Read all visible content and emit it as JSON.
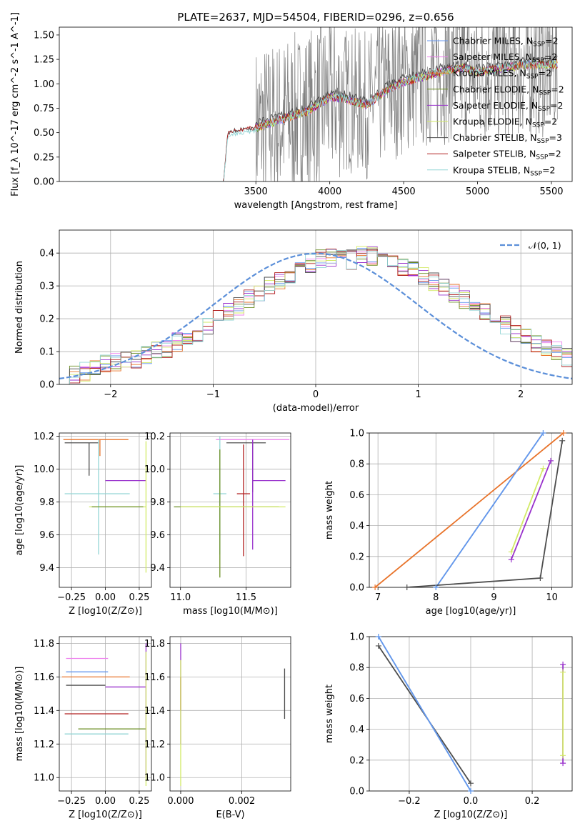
{
  "colors": {
    "Chabrier MILES": "#6495ed",
    "Salpeter MILES": "#ee82ee",
    "Kroupa MILES": "#e8732a",
    "Chabrier ELODIE": "#6b8e23",
    "Salpeter ELODIE": "#9932cc",
    "Kroupa ELODIE": "#d2ea66",
    "Chabrier STELIB": "#4d4d4d",
    "Salpeter STELIB": "#b22222",
    "Kroupa STELIB": "#93d5d5",
    "data": "#808080",
    "gauss": "#5b8fd9"
  },
  "chart_data": [
    {
      "id": "spectrum",
      "type": "line",
      "title": "PLATE=2637, MJD=54504, FIBERID=0296, z=0.656",
      "xlabel": "wavelength [Angstrom, rest frame]",
      "ylabel": "Flux [f_λ 10^-17 erg cm^-2 s^-1 A^-1]",
      "xlim": [
        2170,
        5640
      ],
      "ylim": [
        0,
        1.58
      ],
      "xticks": [
        "3500",
        "4000",
        "4500",
        "5000",
        "5500"
      ],
      "yticks": [
        "0.00",
        "0.25",
        "0.50",
        "0.75",
        "1.00",
        "1.25",
        "1.50"
      ],
      "grid": false,
      "legend_position": "top-right",
      "series": [
        {
          "name": "Chabrier MILES, N_SSP=2"
        },
        {
          "name": "Salpeter MILES, N_SSP=2"
        },
        {
          "name": "Kroupa MILES, N_SSP=2"
        },
        {
          "name": "Chabrier ELODIE, N_SSP=2"
        },
        {
          "name": "Salpeter ELODIE, N_SSP=2"
        },
        {
          "name": "Kroupa ELODIE, N_SSP=2"
        },
        {
          "name": "Chabrier STELIB, N_SSP=3"
        },
        {
          "name": "Salpeter STELIB, N_SSP=2"
        },
        {
          "name": "Kroupa STELIB, N_SSP=2"
        }
      ],
      "model_continuum": {
        "x": [
          2170,
          2300,
          3280,
          3310,
          3350,
          3500,
          3700,
          3850,
          4000,
          4100,
          4250,
          4400,
          4500,
          4650,
          4800,
          4900,
          5000,
          5100,
          5300,
          5500,
          5540
        ],
        "y": [
          0,
          0,
          0,
          0.48,
          0.52,
          0.55,
          0.65,
          0.72,
          0.86,
          0.85,
          0.78,
          0.95,
          1.02,
          1.08,
          1.14,
          1.16,
          1.12,
          1.14,
          1.19,
          1.2,
          1.2
        ]
      },
      "data_range": [
        3500,
        5540
      ]
    },
    {
      "id": "residuals",
      "type": "bar",
      "xlabel": "(data-model)/error",
      "ylabel": "Normed distribution",
      "xlim": [
        -2.5,
        2.5
      ],
      "ylim": [
        0,
        0.47
      ],
      "xticks": [
        "−2",
        "−1",
        "0",
        "1",
        "2"
      ],
      "yticks": [
        "0.0",
        "0.1",
        "0.2",
        "0.3",
        "0.4"
      ],
      "grid": true,
      "legend_position": "top-right",
      "gauss_label": "𝒩(0, 1)",
      "bin_edges_start": -2.5,
      "bin_width": 0.1,
      "hist_values": [
        0.02,
        0.03,
        0.04,
        0.05,
        0.06,
        0.07,
        0.07,
        0.08,
        0.09,
        0.1,
        0.11,
        0.13,
        0.14,
        0.16,
        0.18,
        0.2,
        0.22,
        0.24,
        0.26,
        0.28,
        0.3,
        0.32,
        0.33,
        0.35,
        0.37,
        0.38,
        0.39,
        0.4,
        0.38,
        0.4,
        0.39,
        0.39,
        0.38,
        0.36,
        0.35,
        0.33,
        0.31,
        0.3,
        0.28,
        0.26,
        0.24,
        0.22,
        0.2,
        0.18,
        0.16,
        0.14,
        0.12,
        0.11,
        0.1,
        0.08
      ]
    },
    {
      "id": "age-vs-Z",
      "type": "scatter",
      "xlabel": "Z [log10(Z/Z⊙)]",
      "ylabel": "age [log10(age/yr)]",
      "xlim": [
        -0.34,
        0.34
      ],
      "ylim": [
        9.28,
        10.22
      ],
      "xticks": [
        "−0.25",
        "0.00",
        "0.25"
      ],
      "yticks": [
        "9.4",
        "9.6",
        "9.8",
        "10.0",
        "10.2"
      ],
      "grid": true,
      "points": [
        {
          "series": "Kroupa MILES",
          "x": -0.04,
          "y": 10.18,
          "xerr": [
            0.27,
            0.21
          ],
          "yerr": [
            0.1,
            0.0
          ]
        },
        {
          "series": "Chabrier STELIB",
          "x": -0.12,
          "y": 10.16,
          "xerr": [
            0.18,
            0.07
          ],
          "yerr": [
            0.2,
            0.0
          ]
        },
        {
          "series": "Kroupa STELIB",
          "x": -0.05,
          "y": 9.85,
          "xerr": [
            0.25,
            0.23
          ],
          "yerr": [
            0.37,
            0.33
          ]
        },
        {
          "series": "Salpeter ELODIE",
          "x": 0.18,
          "y": 9.93,
          "xerr": [
            0.18,
            0.12
          ],
          "yerr": [
            0.0,
            0.0
          ]
        },
        {
          "series": "Kroupa ELODIE",
          "x": 0.1,
          "y": 9.77,
          "xerr": [
            0.22,
            0.2
          ],
          "yerr": [
            0.0,
            0.0
          ]
        },
        {
          "series": "Chabrier ELODIE",
          "x": 0.1,
          "y": 9.77,
          "xerr": [
            0.2,
            0.18
          ],
          "yerr": [
            0.0,
            0.0
          ]
        },
        {
          "series": "Kroupa ELODIE",
          "x": 0.3,
          "y": 9.77,
          "xerr": [
            0.0,
            0.0
          ],
          "yerr": [
            0.4,
            0.4
          ]
        }
      ]
    },
    {
      "id": "age-vs-mass",
      "type": "scatter",
      "xlabel": "mass [log10(M/M⊙)]",
      "ylabel": "",
      "xlim": [
        10.92,
        11.84
      ],
      "ylim": [
        9.28,
        10.22
      ],
      "xticks": [
        "11.0",
        "11.5"
      ],
      "yticks": [
        "9.4",
        "9.6",
        "9.8",
        "10.0",
        "10.2"
      ],
      "grid": true,
      "points": [
        {
          "series": "Salpeter MILES",
          "x": 11.55,
          "y": 10.18,
          "xerr": [
            0.28,
            0.28
          ],
          "yerr": [
            0.3,
            0.0
          ]
        },
        {
          "series": "Chabrier STELIB",
          "x": 11.55,
          "y": 10.16,
          "xerr": [
            0.2,
            0.1
          ],
          "yerr": [
            0.3,
            0.0
          ]
        },
        {
          "series": "Salpeter ELODIE",
          "x": 11.55,
          "y": 9.93,
          "xerr": [
            0.0,
            0.25
          ],
          "yerr": [
            0.42,
            0.25
          ]
        },
        {
          "series": "Salpeter STELIB",
          "x": 11.48,
          "y": 9.85,
          "xerr": [
            0.05,
            0.05
          ],
          "yerr": [
            0.38,
            0.3
          ]
        },
        {
          "series": "Kroupa STELIB",
          "x": 11.3,
          "y": 9.85,
          "xerr": [
            0.05,
            0.05
          ],
          "yerr": [
            0.37,
            0.35
          ]
        },
        {
          "series": "Chabrier ELODIE",
          "x": 11.3,
          "y": 9.77,
          "xerr": [
            0.35,
            0.45
          ],
          "yerr": [
            0.43,
            0.35
          ]
        },
        {
          "series": "Kroupa ELODIE",
          "x": 11.3,
          "y": 9.77,
          "xerr": [
            0.3,
            0.5
          ],
          "yerr": [
            0.0,
            0.0
          ]
        }
      ]
    },
    {
      "id": "weight-vs-age",
      "type": "line",
      "xlabel": "age [log10(age/yr)]",
      "ylabel": "mass weight",
      "xlim": [
        6.85,
        10.35
      ],
      "ylim": [
        0,
        1.0
      ],
      "xticks": [
        "7",
        "8",
        "9",
        "10"
      ],
      "yticks": [
        "0.0",
        "0.2",
        "0.4",
        "0.6",
        "0.8",
        "1.0"
      ],
      "grid": true,
      "series": [
        {
          "series": "Kroupa MILES",
          "x": [
            6.95,
            10.2
          ],
          "y": [
            0.0,
            1.0
          ]
        },
        {
          "series": "Kroupa STELIB",
          "x": [
            8.0,
            9.85
          ],
          "y": [
            0.0,
            1.0
          ]
        },
        {
          "series": "Chabrier MILES",
          "x": [
            8.0,
            9.85
          ],
          "y": [
            0.0,
            1.0
          ]
        },
        {
          "series": "Chabrier STELIB",
          "x": [
            7.5,
            9.8,
            10.18
          ],
          "y": [
            0.0,
            0.06,
            0.95
          ]
        },
        {
          "series": "Kroupa ELODIE",
          "x": [
            9.3,
            9.85
          ],
          "y": [
            0.23,
            0.77
          ]
        },
        {
          "series": "Salpeter ELODIE",
          "x": [
            9.3,
            9.98
          ],
          "y": [
            0.18,
            0.82
          ]
        }
      ]
    },
    {
      "id": "mass-vs-Z",
      "type": "scatter",
      "xlabel": "Z [log10(Z/Z⊙)]",
      "ylabel": "mass [log10(M/M⊙)]",
      "xlim": [
        -0.34,
        0.34
      ],
      "ylim": [
        10.92,
        11.84
      ],
      "xticks": [
        "−0.25",
        "0.00",
        "0.25"
      ],
      "yticks": [
        "11.0",
        "11.2",
        "11.4",
        "11.6",
        "11.8"
      ],
      "grid": true,
      "points": [
        {
          "series": "Salpeter MILES",
          "x": -0.12,
          "y": 11.71,
          "xerr": [
            0.17,
            0.14
          ],
          "yerr": [
            0.0,
            0.0
          ]
        },
        {
          "series": "Chabrier MILES",
          "x": -0.12,
          "y": 11.63,
          "xerr": [
            0.17,
            0.14
          ],
          "yerr": [
            0.0,
            0.0
          ]
        },
        {
          "series": "Kroupa MILES",
          "x": -0.12,
          "y": 11.6,
          "xerr": [
            0.2,
            0.3
          ],
          "yerr": [
            0.0,
            0.0
          ]
        },
        {
          "series": "Chabrier STELIB",
          "x": -0.12,
          "y": 11.55,
          "xerr": [
            0.17,
            0.12
          ],
          "yerr": [
            0.0,
            0.0
          ]
        },
        {
          "series": "Salpeter ELODIE",
          "x": 0.1,
          "y": 11.54,
          "xerr": [
            0.1,
            0.2
          ],
          "yerr": [
            0.0,
            0.0
          ]
        },
        {
          "series": "Salpeter STELIB",
          "x": -0.05,
          "y": 11.38,
          "xerr": [
            0.25,
            0.22
          ],
          "yerr": [
            0.0,
            0.0
          ]
        },
        {
          "series": "Chabrier ELODIE",
          "x": 0.1,
          "y": 11.29,
          "xerr": [
            0.3,
            0.2
          ],
          "yerr": [
            0.0,
            0.0
          ]
        },
        {
          "series": "Kroupa STELIB",
          "x": -0.05,
          "y": 11.26,
          "xerr": [
            0.25,
            0.22
          ],
          "yerr": [
            0.0,
            0.0
          ]
        },
        {
          "series": "Salpeter ELODIE",
          "x": 0.3,
          "y": 11.6,
          "xerr": [
            0.0,
            0.0
          ],
          "yerr": [
            0.6,
            0.2
          ]
        },
        {
          "series": "Kroupa ELODIE",
          "x": 0.3,
          "y": 11.4,
          "xerr": [
            0.0,
            0.0
          ],
          "yerr": [
            0.45,
            0.35
          ]
        }
      ]
    },
    {
      "id": "mass-vs-EBV",
      "type": "scatter",
      "xlabel": "E(B-V)",
      "ylabel": "",
      "xlim": [
        -0.00035,
        0.0036
      ],
      "ylim": [
        10.92,
        11.84
      ],
      "xticks": [
        "0.000",
        "0.002"
      ],
      "yticks": [
        "11.0",
        "11.2",
        "11.4",
        "11.6",
        "11.8"
      ],
      "grid": true,
      "points": [
        {
          "series": "Salpeter ELODIE",
          "x": 0.0,
          "y": 11.6,
          "xerr": [
            0.0,
            0.0
          ],
          "yerr": [
            0.4,
            0.2
          ]
        },
        {
          "series": "Salpeter STELIB",
          "x": 0.0,
          "y": 11.5,
          "xerr": [
            0.0,
            0.0
          ],
          "yerr": [
            0.1,
            0.1
          ]
        },
        {
          "series": "Kroupa ELODIE",
          "x": 0.0,
          "y": 11.4,
          "xerr": [
            0.0,
            0.0
          ],
          "yerr": [
            0.45,
            0.3
          ]
        },
        {
          "series": "Chabrier STELIB",
          "x": 0.0034,
          "y": 11.5,
          "xerr": [
            0.0,
            0.0
          ],
          "yerr": [
            0.15,
            0.15
          ]
        }
      ]
    },
    {
      "id": "weight-vs-Z",
      "type": "line",
      "xlabel": "Z [log10(Z/Z⊙)]",
      "ylabel": "mass weight",
      "xlim": [
        -0.33,
        0.33
      ],
      "ylim": [
        0,
        1.0
      ],
      "xticks": [
        "−0.2",
        "0.0",
        "0.2"
      ],
      "yticks": [
        "0.0",
        "0.2",
        "0.4",
        "0.6",
        "0.8",
        "1.0"
      ],
      "grid": true,
      "series": [
        {
          "series": "Chabrier STELIB",
          "x": [
            -0.3,
            0.0
          ],
          "y": [
            0.94,
            0.05
          ]
        },
        {
          "series": "Kroupa STELIB",
          "x": [
            -0.3,
            0.0
          ],
          "y": [
            1.0,
            0.0
          ]
        },
        {
          "series": "Chabrier MILES",
          "x": [
            -0.3,
            0.0
          ],
          "y": [
            1.0,
            0.0
          ]
        },
        {
          "series": "Salpeter ELODIE",
          "x": [
            0.3,
            0.3
          ],
          "y": [
            0.18,
            0.82
          ]
        },
        {
          "series": "Kroupa ELODIE",
          "x": [
            0.3,
            0.3
          ],
          "y": [
            0.23,
            0.77
          ]
        }
      ]
    }
  ]
}
